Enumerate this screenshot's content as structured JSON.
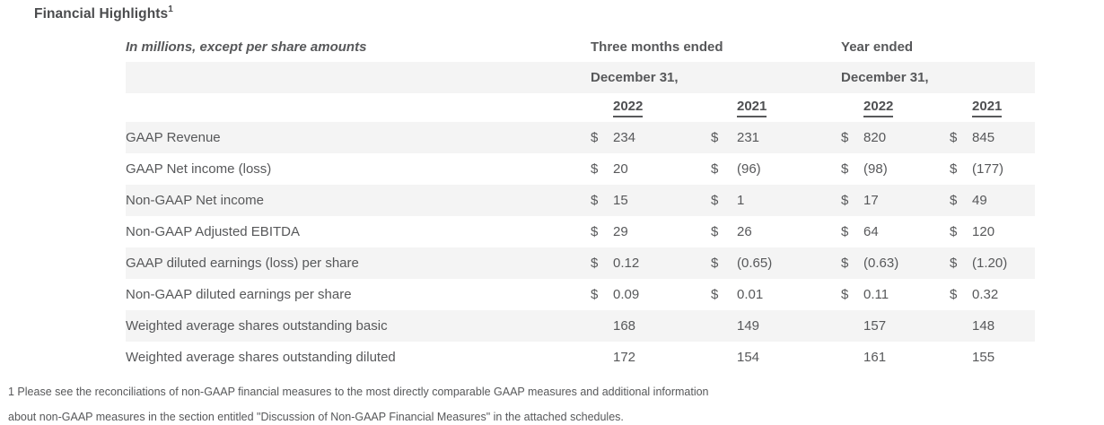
{
  "page": {
    "title": "Financial Highlights",
    "title_superscript": "1"
  },
  "table": {
    "caption": "In millions, except per share amounts",
    "currency_symbol": "$",
    "groups": [
      {
        "line1": "Three months ended",
        "line2": "December 31,"
      },
      {
        "line1": "Year ended",
        "line2": "December 31,"
      }
    ],
    "year_columns": [
      "2022",
      "2021",
      "2022",
      "2021"
    ],
    "rows": [
      {
        "label": "GAAP Revenue",
        "currency": true,
        "values": [
          "234",
          "231",
          "820",
          "845"
        ]
      },
      {
        "label": "GAAP Net income (loss)",
        "currency": true,
        "values": [
          "20",
          "(96)",
          "(98)",
          "(177)"
        ]
      },
      {
        "label": "Non-GAAP Net income",
        "currency": true,
        "values": [
          "15",
          "1",
          "17",
          "49"
        ]
      },
      {
        "label": "Non-GAAP Adjusted EBITDA",
        "currency": true,
        "values": [
          "29",
          "26",
          "64",
          "120"
        ]
      },
      {
        "label": "GAAP diluted earnings (loss) per share",
        "currency": true,
        "values": [
          "0.12",
          "(0.65)",
          "(0.63)",
          "(1.20)"
        ]
      },
      {
        "label": "Non-GAAP diluted earnings per share",
        "currency": true,
        "values": [
          "0.09",
          "0.01",
          "0.11",
          "0.32"
        ]
      },
      {
        "label": "Weighted average shares outstanding basic",
        "currency": false,
        "values": [
          "168",
          "149",
          "157",
          "148"
        ]
      },
      {
        "label": "Weighted average shares outstanding diluted",
        "currency": false,
        "values": [
          "172",
          "154",
          "161",
          "155"
        ]
      }
    ]
  },
  "footnote": {
    "lines": [
      "1 Please see the reconciliations of non-GAAP financial measures to the most directly comparable GAAP measures and additional information",
      "about non-GAAP measures in the section entitled \"Discussion of Non-GAAP Financial Measures\" in the attached schedules."
    ]
  },
  "colors": {
    "stripe_background": "#f4f4f4",
    "body_text": "#57585a",
    "heading_text": "#4f5052"
  }
}
